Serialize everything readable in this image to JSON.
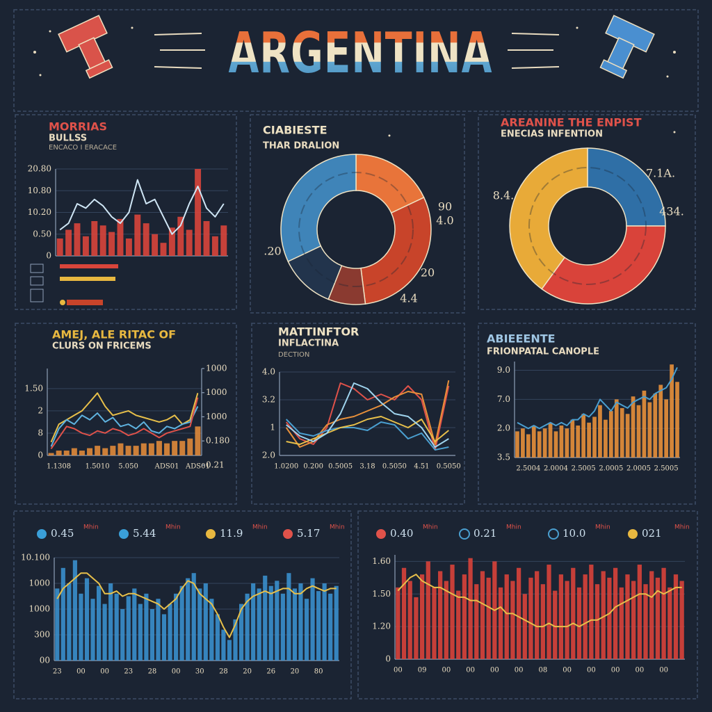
{
  "header": {
    "title": "ARGENTINA"
  },
  "chart_data": [
    {
      "type": "bar",
      "title": "MORRIAS",
      "subtitle": "BULLSS",
      "note": "ENCACO I ERACACE",
      "categories": [
        null,
        null,
        null,
        null,
        null,
        null,
        null,
        null,
        null,
        null,
        null,
        null,
        null,
        null,
        null,
        null,
        null,
        null,
        null,
        null
      ],
      "series": [
        {
          "type": "bar",
          "color": "#d9453b",
          "values": [
            0.8,
            1.2,
            1.5,
            0.9,
            1.6,
            1.4,
            1.1,
            1.7,
            0.8,
            1.9,
            1.5,
            1.0,
            0.6,
            1.3,
            1.8,
            1.2,
            4.0,
            1.6,
            0.9,
            1.4
          ]
        },
        {
          "type": "line",
          "color": "#cfe6f5",
          "values": [
            1.2,
            1.5,
            2.4,
            2.2,
            2.6,
            2.3,
            1.8,
            1.5,
            2.0,
            3.5,
            2.4,
            2.6,
            1.8,
            1.0,
            1.4,
            2.4,
            3.2,
            2.2,
            1.8,
            2.4
          ]
        }
      ],
      "ylim": [
        0,
        4
      ],
      "yticks": [
        0,
        {
          "value": 1,
          "label": "0.50"
        },
        {
          "value": 2,
          "label": "10.20"
        },
        {
          "value": 3,
          "label": "10.80"
        },
        {
          "value": 4,
          "label": "20.80"
        }
      ],
      "grid": true
    },
    {
      "type": "donut",
      "title": "CIABIESTE",
      "subtitle": "THAR DRALION",
      "values": [
        18,
        30,
        8,
        12,
        32
      ],
      "colors": [
        "#e8743a",
        "#c8442a",
        "#8a3a30",
        "#22344c",
        "#3f84b8"
      ],
      "annotations": [
        "90",
        "4.0",
        ".20",
        "20",
        "4.4"
      ]
    },
    {
      "type": "donut",
      "title": "AREANINE THE ENPIST",
      "subtitle": "ENECIAS INFENTION",
      "values": [
        25,
        35,
        40
      ],
      "colors": [
        "#2f6fa6",
        "#d9433a",
        "#e8aa38"
      ],
      "annotations": [
        "7.1A.",
        "8.4.",
        "434."
      ]
    },
    {
      "type": "line",
      "title": "AMEJ, ALE RITAC OF",
      "subtitle": "CLURS ON FRICEMS",
      "categories": [
        null,
        "1.1308",
        null,
        null,
        null,
        null,
        "1.5010",
        null,
        null,
        null,
        "5.050",
        null,
        null,
        null,
        null,
        "ADS01",
        null,
        null,
        null,
        "ADS01"
      ],
      "series": [
        {
          "type": "bar",
          "axis": "y2",
          "color": "#e08a3a",
          "values": [
            0.5,
            0.6,
            0.6,
            0.7,
            0.6,
            0.7,
            0.8,
            0.7,
            0.8,
            0.9,
            0.8,
            0.8,
            0.9,
            0.9,
            1.0,
            0.9,
            1.0,
            1.0,
            1.1,
            1.6
          ]
        },
        {
          "type": "line",
          "color": "#e8c04a",
          "values": [
            0.6,
            1.4,
            1.6,
            1.8,
            2.0,
            2.4,
            2.8,
            2.2,
            1.8,
            1.9,
            2.0,
            1.8,
            1.7,
            1.6,
            1.5,
            1.6,
            1.8,
            1.4,
            1.6,
            2.8
          ]
        },
        {
          "type": "line",
          "color": "#5fb3e0",
          "values": [
            0.4,
            1.2,
            1.6,
            1.4,
            1.8,
            1.6,
            1.9,
            1.5,
            1.7,
            1.3,
            1.4,
            1.2,
            1.5,
            1.1,
            1.0,
            1.3,
            1.2,
            1.4,
            1.5,
            2.2
          ]
        },
        {
          "type": "line",
          "color": "#e0524a",
          "values": [
            0.3,
            0.8,
            1.3,
            1.2,
            1.0,
            0.9,
            1.1,
            1.0,
            1.2,
            1.1,
            0.9,
            1.0,
            1.2,
            1.0,
            0.8,
            1.0,
            1.1,
            1.2,
            1.3,
            2.6
          ]
        }
      ],
      "ylim": [
        0,
        3.9
      ],
      "yticks": [
        0,
        {
          "value": 1,
          "label": "8"
        },
        2,
        {
          "value": 3,
          "label": "1.50"
        }
      ],
      "y2lim": [
        0.4,
        4
      ],
      "y2ticks": [
        {
          "value": 0,
          "label": "0.21"
        },
        {
          "value": 1,
          "label": "0.180"
        },
        {
          "value": 2,
          "label": "1000"
        },
        {
          "value": 3,
          "label": "1000"
        },
        {
          "value": 4,
          "label": "1000"
        }
      ],
      "grid": true
    },
    {
      "type": "line",
      "title": "MATTINFTOR",
      "subtitle": "INFLACTINA",
      "note": "DECTION",
      "categories": [
        "1.0200",
        null,
        "0.200",
        null,
        "0.5005",
        null,
        "3.18",
        null,
        "0.5050",
        null,
        "4.51",
        null,
        "0.5050"
      ],
      "series": [
        {
          "type": "line",
          "color": "#e0524a",
          "values": [
            1.2,
            0.6,
            0.4,
            1.0,
            2.6,
            2.4,
            2.0,
            2.2,
            2.0,
            2.5,
            2.0,
            0.2,
            2.5
          ]
        },
        {
          "type": "line",
          "color": "#e8903a",
          "values": [
            1.0,
            0.3,
            0.5,
            1.1,
            1.3,
            1.4,
            1.6,
            1.8,
            2.1,
            2.3,
            2.2,
            0.4,
            2.7
          ]
        },
        {
          "type": "line",
          "color": "#4a9fd0",
          "values": [
            1.3,
            0.8,
            0.7,
            0.9,
            1.0,
            1.0,
            0.9,
            1.2,
            1.1,
            0.6,
            0.8,
            0.2,
            0.3
          ]
        },
        {
          "type": "line",
          "color": "#e8c04a",
          "values": [
            0.5,
            0.4,
            0.6,
            0.8,
            1.0,
            1.1,
            1.3,
            1.4,
            1.2,
            1.0,
            1.3,
            0.5,
            0.9
          ]
        },
        {
          "type": "line",
          "color": "#9fd4ee",
          "values": [
            1.1,
            0.7,
            0.5,
            0.8,
            1.5,
            2.6,
            2.4,
            1.9,
            1.5,
            1.4,
            1.0,
            0.3,
            0.6
          ]
        }
      ],
      "ylim": [
        0,
        3
      ],
      "yticks": [
        {
          "value": 0,
          "label": "2.0"
        },
        1,
        {
          "value": 2,
          "label": "3.2"
        },
        {
          "value": 3,
          "label": "4.0"
        }
      ],
      "grid": true
    },
    {
      "type": "bar",
      "title": "ABIEEENTE",
      "subtitle": "FRIONPATAL CANOPLE",
      "categories": [
        null,
        null,
        "2.5004",
        null,
        null,
        null,
        null,
        "2.0004",
        null,
        null,
        null,
        null,
        "2.5005",
        null,
        null,
        null,
        null,
        "2.0005",
        null,
        null,
        null,
        null,
        "2.0005",
        null,
        null,
        null,
        null,
        "2.5005",
        null,
        null
      ],
      "series": [
        {
          "type": "bar",
          "color": "#e8903a",
          "values": [
            0.9,
            1.0,
            0.8,
            1.1,
            0.9,
            1.0,
            1.2,
            0.9,
            1.1,
            1.0,
            1.3,
            1.1,
            1.5,
            1.2,
            1.4,
            1.8,
            1.3,
            1.6,
            2.0,
            1.7,
            1.5,
            2.1,
            1.8,
            2.3,
            1.9,
            2.2,
            2.5,
            2.0,
            3.2,
            2.6
          ]
        },
        {
          "type": "line",
          "color": "#4a9fd0",
          "values": [
            1.2,
            1.1,
            1.0,
            1.1,
            1.0,
            1.1,
            1.2,
            1.1,
            1.2,
            1.1,
            1.3,
            1.3,
            1.5,
            1.4,
            1.6,
            2.0,
            1.8,
            1.6,
            1.9,
            1.8,
            1.7,
            1.9,
            2.0,
            2.1,
            2.0,
            2.2,
            2.3,
            2.4,
            2.7,
            3.1
          ]
        }
      ],
      "ylim": [
        0,
        3.3
      ],
      "yticks": [
        {
          "value": 0,
          "label": "3.5"
        },
        {
          "value": 1,
          "label": "2.0"
        },
        {
          "value": 2,
          "label": "7.0"
        },
        {
          "value": 3,
          "label": "9.0"
        }
      ],
      "grid": true
    },
    {
      "type": "bar",
      "stats": [
        {
          "color": "#3a9fd8",
          "value": "0.45",
          "label": "Mhin"
        },
        {
          "color": "#3a9fd8",
          "value": "5.44",
          "label": "Mhin"
        },
        {
          "color": "#e8b840",
          "value": "11.9",
          "label": "Mhin"
        },
        {
          "color": "#e0524a",
          "value": "5.17",
          "label": "Mhin"
        }
      ],
      "categories": [
        "23",
        null,
        null,
        null,
        "00",
        null,
        null,
        null,
        "00",
        null,
        null,
        null,
        "23",
        null,
        null,
        null,
        "28",
        null,
        null,
        null,
        "00",
        null,
        null,
        null,
        "30",
        null,
        null,
        null,
        "28",
        null,
        null,
        null,
        "20",
        null,
        null,
        null,
        "26",
        null,
        null,
        null,
        "20",
        null,
        null,
        null,
        "80",
        null,
        null,
        null
      ],
      "series": [
        {
          "type": "bar",
          "color": "#3a8fcc",
          "values": [
            2.8,
            3.6,
            3.0,
            3.9,
            2.6,
            3.2,
            2.4,
            2.9,
            2.2,
            3.0,
            2.6,
            2.0,
            2.5,
            2.8,
            2.2,
            2.6,
            2.0,
            2.4,
            1.8,
            2.2,
            2.6,
            2.9,
            3.2,
            3.4,
            2.8,
            3.0,
            2.4,
            1.8,
            1.2,
            0.8,
            1.6,
            2.2,
            2.6,
            3.0,
            2.8,
            3.3,
            2.9,
            3.1,
            2.6,
            3.4,
            2.8,
            3.0,
            2.4,
            3.2,
            2.7,
            3.0,
            2.6,
            2.9
          ]
        },
        {
          "type": "line",
          "color": "#e8c04a",
          "values": [
            2.4,
            2.8,
            3.0,
            3.2,
            3.4,
            3.4,
            3.2,
            3.0,
            2.6,
            2.6,
            2.7,
            2.5,
            2.6,
            2.6,
            2.5,
            2.4,
            2.3,
            2.2,
            2.0,
            2.2,
            2.4,
            2.8,
            3.1,
            3.0,
            2.6,
            2.4,
            2.2,
            1.8,
            1.3,
            0.9,
            1.4,
            2.0,
            2.3,
            2.5,
            2.6,
            2.7,
            2.6,
            2.7,
            2.8,
            2.8,
            2.6,
            2.6,
            2.8,
            2.9,
            2.8,
            2.7,
            2.8,
            2.8
          ]
        }
      ],
      "ylim": [
        0,
        4
      ],
      "yticks": [
        {
          "value": 0,
          "label": "00"
        },
        {
          "value": 1,
          "label": "300"
        },
        {
          "value": 2,
          "label": "1000"
        },
        {
          "value": 3,
          "label": "1000"
        },
        {
          "value": 4,
          "label": "10.100"
        }
      ],
      "grid": true
    },
    {
      "type": "bar",
      "stats": [
        {
          "color": "#e0524a",
          "value": "0.40",
          "label": "Mhin",
          "ring": false
        },
        {
          "color": "#4a9fd0",
          "value": "0.21",
          "label": "Mhin",
          "ring": true
        },
        {
          "color": "#4a9fd0",
          "value": "10.0",
          "label": "Mhin",
          "ring": true
        },
        {
          "color": "#e8b840",
          "value": "021",
          "label": "Mhin",
          "ring": false
        }
      ],
      "categories": [
        "00",
        null,
        null,
        null,
        "09",
        null,
        null,
        null,
        "00",
        null,
        null,
        null,
        "00",
        null,
        null,
        null,
        "00",
        null,
        null,
        null,
        "00",
        null,
        null,
        null,
        "08",
        null,
        null,
        null,
        "00",
        null,
        null,
        null,
        "00",
        null,
        null,
        null,
        "00",
        null,
        null,
        null,
        "00",
        null,
        null,
        null,
        "00",
        null,
        null,
        null
      ],
      "series": [
        {
          "type": "bar",
          "color": "#d9433a",
          "values": [
            2.2,
            2.8,
            2.4,
            1.9,
            2.6,
            3.0,
            2.2,
            2.7,
            2.4,
            2.9,
            2.1,
            2.6,
            3.1,
            2.3,
            2.7,
            2.5,
            3.0,
            2.2,
            2.6,
            2.4,
            2.8,
            2.0,
            2.5,
            2.7,
            2.3,
            2.9,
            2.1,
            2.6,
            2.4,
            2.8,
            2.2,
            2.6,
            2.9,
            2.3,
            2.7,
            2.5,
            2.8,
            2.2,
            2.6,
            2.4,
            2.9,
            2.3,
            2.7,
            2.5,
            2.8,
            2.2,
            2.6,
            2.4
          ]
        },
        {
          "type": "line",
          "color": "#e8c04a",
          "values": [
            2.1,
            2.3,
            2.5,
            2.6,
            2.4,
            2.3,
            2.2,
            2.2,
            2.1,
            2.0,
            1.9,
            1.9,
            1.8,
            1.8,
            1.7,
            1.6,
            1.5,
            1.6,
            1.4,
            1.4,
            1.3,
            1.2,
            1.1,
            1.0,
            1.0,
            1.1,
            1.0,
            1.0,
            1.0,
            1.1,
            1.0,
            1.1,
            1.2,
            1.2,
            1.3,
            1.4,
            1.6,
            1.7,
            1.8,
            1.9,
            2.0,
            2.0,
            1.9,
            2.1,
            2.0,
            2.1,
            2.2,
            2.2
          ]
        }
      ],
      "ylim": [
        0,
        3.2
      ],
      "yticks": [
        0,
        {
          "value": 1,
          "label": "1.20"
        },
        {
          "value": 2,
          "label": "1.50"
        },
        {
          "value": 3,
          "label": "1.60"
        }
      ],
      "grid": true
    }
  ]
}
